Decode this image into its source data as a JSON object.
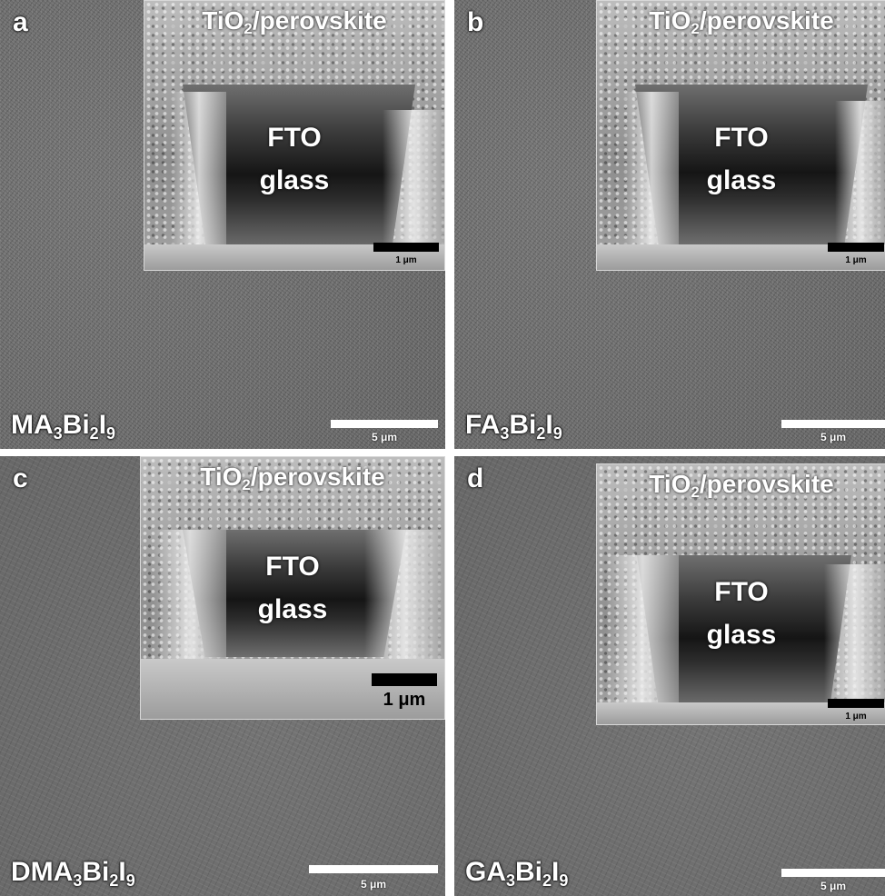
{
  "panels": {
    "a": {
      "letter": "a",
      "compound": [
        "MA",
        "3",
        "Bi",
        "2",
        "I",
        "9"
      ],
      "scale": "5 μm",
      "inset": {
        "top": [
          "TiO",
          "2",
          "/perovskite"
        ],
        "mid1": "FTO",
        "mid2": "glass",
        "scale": "1 μm"
      }
    },
    "b": {
      "letter": "b",
      "compound": [
        "FA",
        "3",
        "Bi",
        "2",
        "I",
        "9"
      ],
      "scale": "5 μm",
      "inset": {
        "top": [
          "TiO",
          "2",
          "/perovskite"
        ],
        "mid1": "FTO",
        "mid2": "glass",
        "scale": "1 μm"
      }
    },
    "c": {
      "letter": "c",
      "compound": [
        "DMA",
        "3",
        "Bi",
        "2",
        "I",
        "9"
      ],
      "scale": "5 μm",
      "inset": {
        "top": [
          "TiO",
          "2",
          "/perovskite"
        ],
        "mid1": "FTO",
        "mid2": "glass",
        "scale": "1 μm"
      }
    },
    "d": {
      "letter": "d",
      "compound": [
        "GA",
        "3",
        "Bi",
        "2",
        "I",
        "9"
      ],
      "scale": "5 μm",
      "inset": {
        "top": [
          "TiO",
          "2",
          "/perovskite"
        ],
        "mid1": "FTO",
        "mid2": "glass",
        "scale": "1 μm"
      }
    }
  }
}
